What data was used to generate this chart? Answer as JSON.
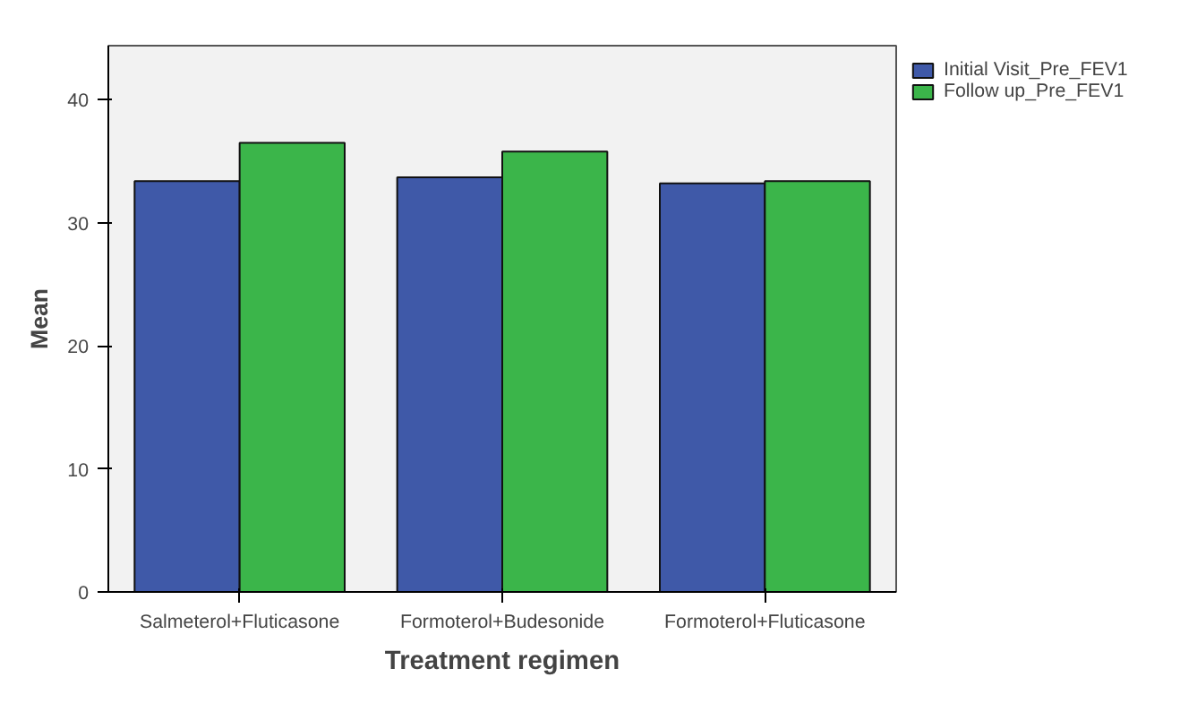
{
  "chart_data": {
    "type": "bar",
    "xlabel": "Treatment regimen",
    "ylabel": "Mean",
    "categories": [
      "Salmeterol+Fluticasone",
      "Formoterol+Budesonide",
      "Formoterol+Fluticasone"
    ],
    "series": [
      {
        "name": "Initial Visit_Pre_FEV1",
        "color": "#3f59a8",
        "values": [
          33.4,
          33.7,
          33.2
        ]
      },
      {
        "name": "Follow up_Pre_FEV1",
        "color": "#3bb54a",
        "values": [
          36.5,
          35.8,
          33.4
        ]
      }
    ],
    "ylim": [
      0,
      44.4
    ],
    "yticks": [
      0,
      10,
      20,
      30,
      40
    ],
    "grid": false,
    "legend": "top right"
  }
}
